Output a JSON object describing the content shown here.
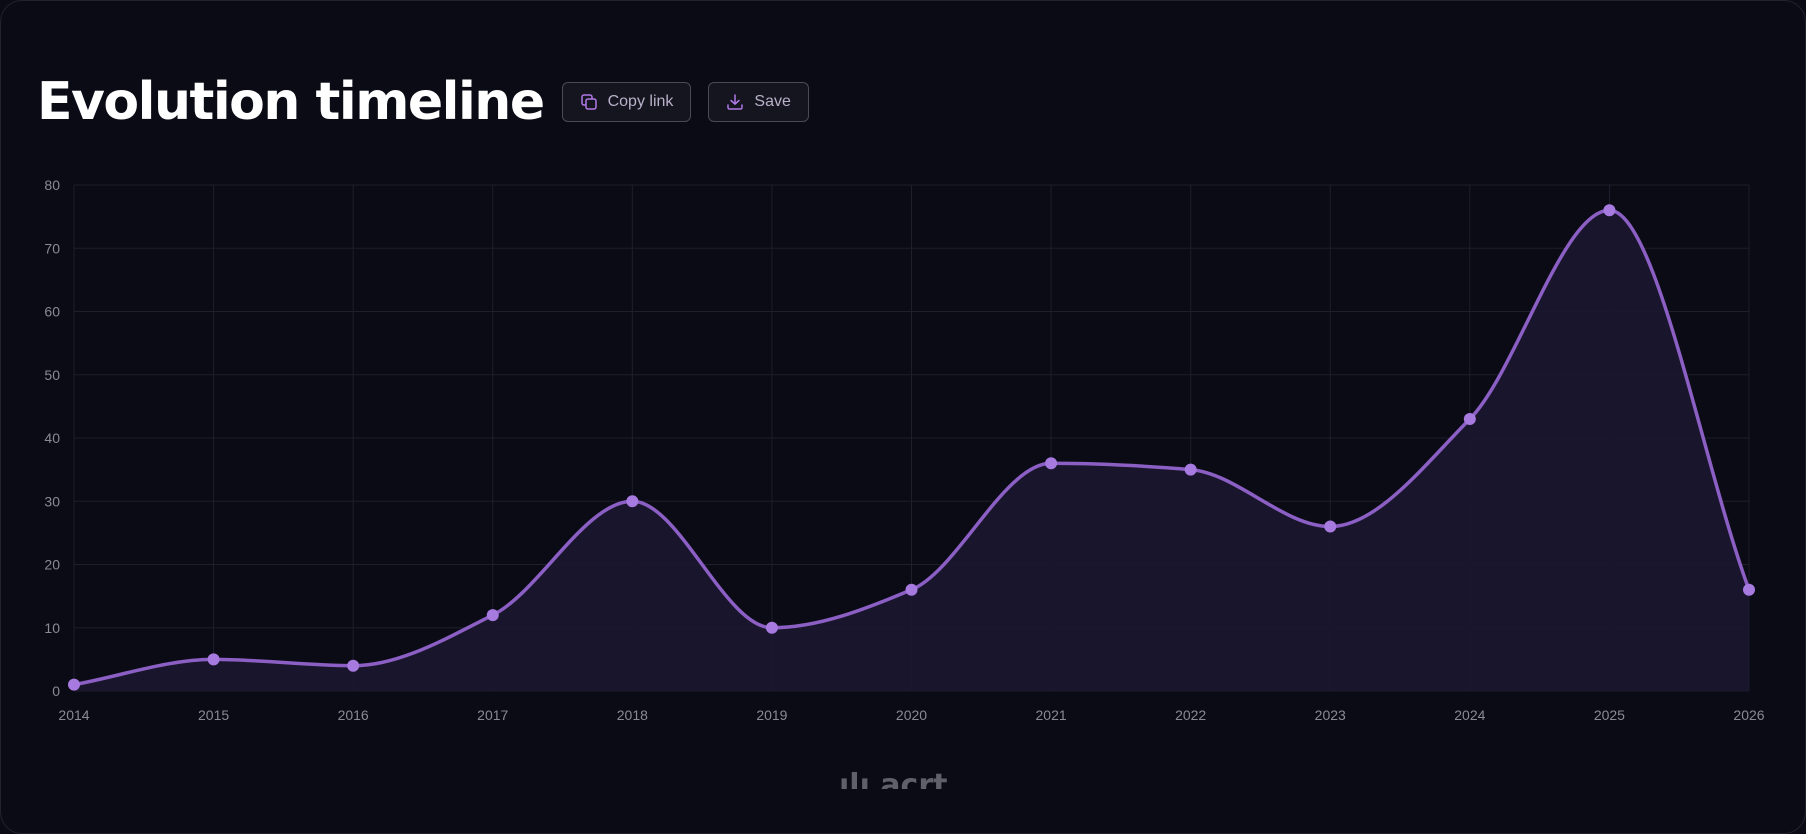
{
  "header": {
    "title": "Evolution timeline",
    "copy_link_label": "Copy link",
    "save_label": "Save"
  },
  "icons": {
    "copy": "copy-icon",
    "save": "download-icon"
  },
  "watermark": "ılı acrt",
  "colors": {
    "background": "#0b0b16",
    "line": "#8b5fc4",
    "point": "#a77ae0",
    "area": "#1b1630",
    "grid": "#1e1e2c",
    "accent_icon": "#b07ae8"
  },
  "chart_data": {
    "type": "area",
    "x": [
      "2014",
      "2015",
      "2016",
      "2017",
      "2018",
      "2019",
      "2020",
      "2021",
      "2022",
      "2023",
      "2024",
      "2025",
      "2026"
    ],
    "series": [
      {
        "values": [
          1,
          5,
          4,
          12,
          30,
          10,
          16,
          36,
          35,
          26,
          43,
          76,
          16
        ]
      }
    ],
    "yticks": [
      "0",
      "10",
      "20",
      "30",
      "40",
      "50",
      "60",
      "70",
      "80"
    ],
    "ylim": [
      0,
      80
    ],
    "grid": true,
    "curve": "smooth"
  }
}
